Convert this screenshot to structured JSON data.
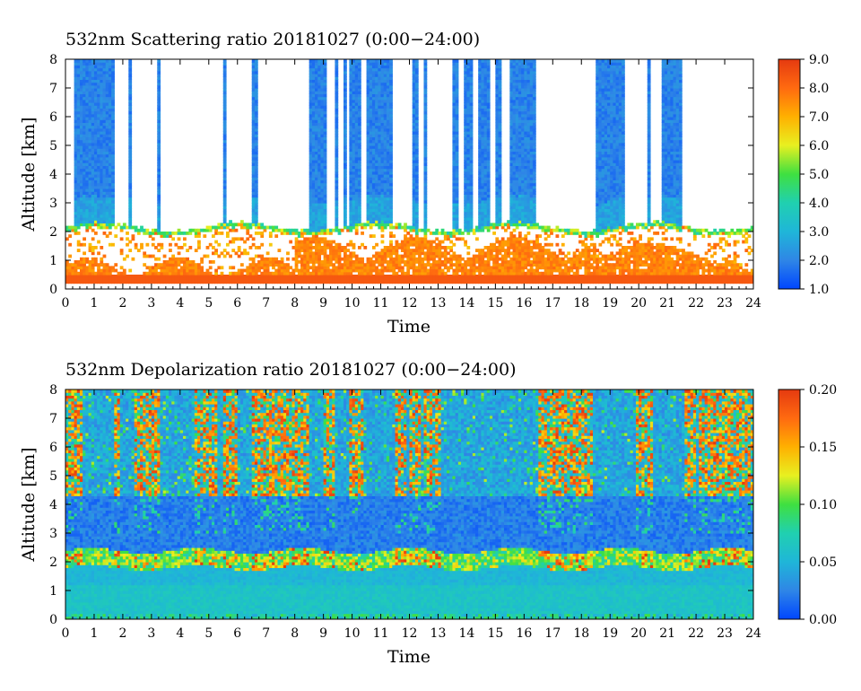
{
  "chart_data": [
    {
      "type": "heatmap",
      "title": "532nm Scattering ratio  20181027 (0:00−24:00)",
      "xlabel": "Time",
      "ylabel": "Altitude [km]",
      "xlim": [
        0,
        24
      ],
      "ylim": [
        0,
        8
      ],
      "x_ticks": [
        "0",
        "1",
        "2",
        "3",
        "4",
        "5",
        "6",
        "7",
        "8",
        "9",
        "10",
        "11",
        "12",
        "13",
        "14",
        "15",
        "16",
        "17",
        "18",
        "19",
        "20",
        "21",
        "22",
        "23",
        "24"
      ],
      "y_ticks": [
        "0",
        "1",
        "2",
        "3",
        "4",
        "5",
        "6",
        "7",
        "8"
      ],
      "colorbar": {
        "min": 1.0,
        "max": 9.0,
        "tick_labels": [
          "1.0",
          "2.0",
          "3.0",
          "4.0",
          "5.0",
          "6.0",
          "7.0",
          "8.0",
          "9.0"
        ],
        "colors": [
          "#0046ff",
          "#2f86e6",
          "#1fb6d8",
          "#20d0b0",
          "#3fe040",
          "#e8f020",
          "#ffb000",
          "#ff6a10",
          "#e53a10"
        ]
      },
      "cloud_columns": [
        [
          0.35,
          1.7
        ],
        [
          2.2,
          2.3
        ],
        [
          3.25,
          3.3
        ],
        [
          5.5,
          5.6
        ],
        [
          6.5,
          6.65
        ],
        [
          8.55,
          9.1
        ],
        [
          9.4,
          9.5
        ],
        [
          9.7,
          9.8
        ],
        [
          9.9,
          10.3
        ],
        [
          10.5,
          11.4
        ],
        [
          12.1,
          12.3
        ],
        [
          12.5,
          12.6
        ],
        [
          13.5,
          13.7
        ],
        [
          13.9,
          14.2
        ],
        [
          14.4,
          14.8
        ],
        [
          15.0,
          15.2
        ],
        [
          15.5,
          16.4
        ],
        [
          18.5,
          19.5
        ],
        [
          20.3,
          20.35
        ],
        [
          20.8,
          21.3
        ],
        [
          21.35,
          21.5
        ]
      ],
      "boundary_layer_top_km": 2.1,
      "strong_layer": {
        "bottom_km": 0.25,
        "top_km": 0.5
      }
    },
    {
      "type": "heatmap",
      "title": "532nm Depolarization ratio  20181027 (0:00−24:00)",
      "xlabel": "Time",
      "ylabel": "Altitude [km]",
      "xlim": [
        0,
        24
      ],
      "ylim": [
        0,
        8
      ],
      "x_ticks": [
        "0",
        "1",
        "2",
        "3",
        "4",
        "5",
        "6",
        "7",
        "8",
        "9",
        "10",
        "11",
        "12",
        "13",
        "14",
        "15",
        "16",
        "17",
        "18",
        "19",
        "20",
        "21",
        "22",
        "23",
        "24"
      ],
      "y_ticks": [
        "0",
        "1",
        "2",
        "3",
        "4",
        "5",
        "6",
        "7",
        "8"
      ],
      "colorbar": {
        "min": 0.0,
        "max": 0.2,
        "tick_labels": [
          "0.00",
          "0.05",
          "0.10",
          "0.15",
          "0.20"
        ],
        "colors": [
          "#0046ff",
          "#2f86e6",
          "#1fb6d8",
          "#20d0b0",
          "#3fe040",
          "#e8f020",
          "#ffb000",
          "#ff6a10",
          "#e53a10"
        ]
      },
      "noisy_columns": [
        [
          0.0,
          0.6
        ],
        [
          1.7,
          1.9
        ],
        [
          2.4,
          3.3
        ],
        [
          4.5,
          5.3
        ],
        [
          5.5,
          6.0
        ],
        [
          6.5,
          8.5
        ],
        [
          9.0,
          9.4
        ],
        [
          9.9,
          10.4
        ],
        [
          11.5,
          11.9
        ],
        [
          12.0,
          12.4
        ],
        [
          12.5,
          13.1
        ],
        [
          16.5,
          18.4
        ],
        [
          19.9,
          20.5
        ],
        [
          21.6,
          22.0
        ],
        [
          22.1,
          24.0
        ]
      ],
      "layer_top_km": 2.1
    }
  ]
}
